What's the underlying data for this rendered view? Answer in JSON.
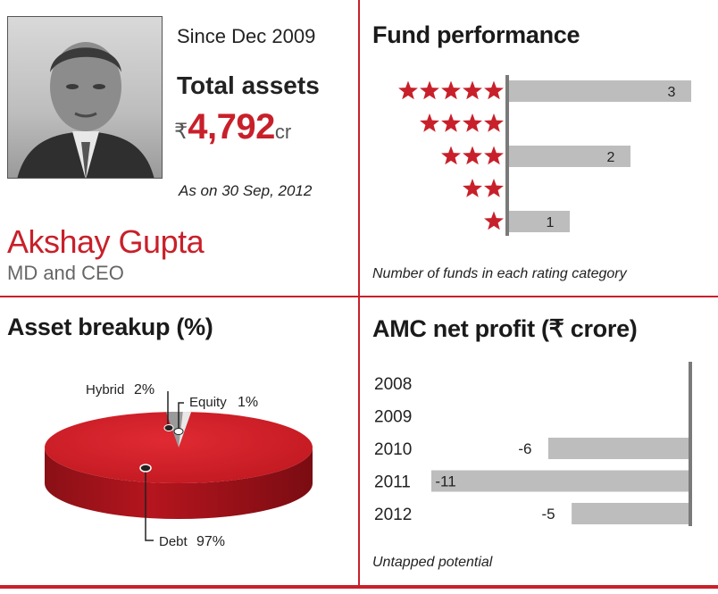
{
  "manager": {
    "since": "Since Dec 2009",
    "total_assets_label": "Total assets",
    "currency_symbol": "₹",
    "total_assets_value": "4,792",
    "total_assets_unit": "cr",
    "as_on": "As on 30 Sep, 2012",
    "name": "Akshay Gupta",
    "title": "MD and CEO"
  },
  "colors": {
    "accent": "#c8202a",
    "bar": "#bdbdbd",
    "axis": "#7a7a7a"
  },
  "chart_data": [
    {
      "type": "bar",
      "title": "Fund performance",
      "orientation": "horizontal",
      "categories": [
        "★★★★★",
        "★★★★",
        "★★★",
        "★★",
        "★"
      ],
      "star_counts": [
        5,
        4,
        3,
        2,
        1
      ],
      "values": [
        3,
        0,
        2,
        0,
        1
      ],
      "labels": [
        "3",
        "",
        "2",
        "",
        "1"
      ],
      "note": "Number of funds in each rating category"
    },
    {
      "type": "pie",
      "title": "Asset breakup (%)",
      "slices": [
        {
          "label": "Debt",
          "value": 97,
          "text": "97%"
        },
        {
          "label": "Hybrid",
          "value": 2,
          "text": "2%"
        },
        {
          "label": "Equity",
          "value": 1,
          "text": "1%"
        }
      ]
    },
    {
      "type": "bar",
      "title": "AMC net profit (₹ crore)",
      "orientation": "horizontal",
      "categories": [
        "2008",
        "2009",
        "2010",
        "2011",
        "2012"
      ],
      "values": [
        null,
        null,
        -6,
        -11,
        -5
      ],
      "labels": [
        "",
        "",
        "-6",
        "-11",
        "-5"
      ],
      "note": "Untapped potential"
    }
  ]
}
